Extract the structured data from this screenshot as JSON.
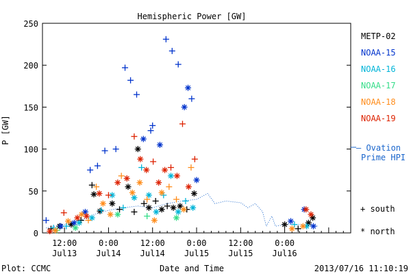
{
  "chart_data": {
    "type": "scatter",
    "title": "Hemispheric Power [GW]",
    "xlabel": "Date and Time",
    "ylabel": "P [GW]",
    "ylim": [
      0,
      250
    ],
    "yticks": [
      0,
      50,
      100,
      150,
      200,
      250
    ],
    "xlim": [
      "2013-07-13 06:00",
      "2013-07-16 18:00"
    ],
    "xticks": [
      {
        "t": "2013-07-13 12:00",
        "line1": "12:00",
        "line2": "Jul13"
      },
      {
        "t": "2013-07-14 00:00",
        "line1": "0:00",
        "line2": "Jul14"
      },
      {
        "t": "2013-07-14 12:00",
        "line1": "12:00",
        "line2": "Jul14"
      },
      {
        "t": "2013-07-15 00:00",
        "line1": "0:00",
        "line2": "Jul15"
      },
      {
        "t": "2013-07-15 12:00",
        "line1": "12:00",
        "line2": "Jul15"
      },
      {
        "t": "2013-07-16 00:00",
        "line1": "0:00",
        "line2": "Jul16"
      }
    ],
    "grid": false,
    "legend_position": "right",
    "series": [
      {
        "name": "METP-02",
        "color": "#000000",
        "points": [
          {
            "t": "2013-07-13 08:20",
            "v": 5,
            "m": "+"
          },
          {
            "t": "2013-07-13 10:40",
            "v": 8,
            "m": "*"
          },
          {
            "t": "2013-07-13 13:50",
            "v": 10,
            "m": "*"
          },
          {
            "t": "2013-07-13 16:30",
            "v": 15,
            "m": "+"
          },
          {
            "t": "2013-07-13 19:30",
            "v": 57,
            "m": "+"
          },
          {
            "t": "2013-07-13 20:00",
            "v": 46,
            "m": "*"
          },
          {
            "t": "2013-07-13 21:40",
            "v": 26,
            "m": "*"
          },
          {
            "t": "2013-07-14 01:00",
            "v": 35,
            "m": "*"
          },
          {
            "t": "2013-07-14 03:00",
            "v": 28,
            "m": "+"
          },
          {
            "t": "2013-07-14 05:20",
            "v": 55,
            "m": "*"
          },
          {
            "t": "2013-07-14 07:00",
            "v": 25,
            "m": "+"
          },
          {
            "t": "2013-07-14 08:00",
            "v": 100,
            "m": "*"
          },
          {
            "t": "2013-07-14 09:40",
            "v": 35,
            "m": "+"
          },
          {
            "t": "2013-07-14 11:00",
            "v": 30,
            "m": "*"
          },
          {
            "t": "2013-07-14 12:50",
            "v": 38,
            "m": "+"
          },
          {
            "t": "2013-07-14 14:30",
            "v": 28,
            "m": "*"
          },
          {
            "t": "2013-07-14 16:00",
            "v": 32,
            "m": "+"
          },
          {
            "t": "2013-07-14 17:40",
            "v": 30,
            "m": "*"
          },
          {
            "t": "2013-07-14 19:30",
            "v": 32,
            "m": "*"
          },
          {
            "t": "2013-07-14 21:20",
            "v": 28,
            "m": "+"
          },
          {
            "t": "2013-07-14 23:20",
            "v": 47,
            "m": "*"
          },
          {
            "t": "2013-07-16 00:00",
            "v": 10,
            "m": "*"
          },
          {
            "t": "2013-07-16 03:40",
            "v": 5,
            "m": "+"
          },
          {
            "t": "2013-07-16 06:30",
            "v": 12,
            "m": "*"
          },
          {
            "t": "2013-07-16 07:40",
            "v": 18,
            "m": "*"
          }
        ]
      },
      {
        "name": "NOAA-15",
        "color": "#0033cc",
        "points": [
          {
            "t": "2013-07-13 07:00",
            "v": 15,
            "m": "+"
          },
          {
            "t": "2013-07-13 11:00",
            "v": 8,
            "m": "*"
          },
          {
            "t": "2013-07-13 14:40",
            "v": 12,
            "m": "*"
          },
          {
            "t": "2013-07-13 17:40",
            "v": 25,
            "m": "*"
          },
          {
            "t": "2013-07-13 19:00",
            "v": 75,
            "m": "+"
          },
          {
            "t": "2013-07-13 21:00",
            "v": 80,
            "m": "+"
          },
          {
            "t": "2013-07-13 23:00",
            "v": 98,
            "m": "+"
          },
          {
            "t": "2013-07-14 02:00",
            "v": 100,
            "m": "+"
          },
          {
            "t": "2013-07-14 04:30",
            "v": 197,
            "m": "+"
          },
          {
            "t": "2013-07-14 06:00",
            "v": 182,
            "m": "+"
          },
          {
            "t": "2013-07-14 07:40",
            "v": 165,
            "m": "+"
          },
          {
            "t": "2013-07-14 09:30",
            "v": 112,
            "m": "*"
          },
          {
            "t": "2013-07-14 11:30",
            "v": 122,
            "m": "+"
          },
          {
            "t": "2013-07-14 12:00",
            "v": 128,
            "m": "+"
          },
          {
            "t": "2013-07-14 14:00",
            "v": 105,
            "m": "*"
          },
          {
            "t": "2013-07-14 15:40",
            "v": 231,
            "m": "+"
          },
          {
            "t": "2013-07-14 17:20",
            "v": 217,
            "m": "+"
          },
          {
            "t": "2013-07-14 19:00",
            "v": 201,
            "m": "+"
          },
          {
            "t": "2013-07-14 20:40",
            "v": 150,
            "m": "*"
          },
          {
            "t": "2013-07-14 21:40",
            "v": 173,
            "m": "*"
          },
          {
            "t": "2013-07-14 22:40",
            "v": 160,
            "m": "+"
          },
          {
            "t": "2013-07-15 00:00",
            "v": 63,
            "m": "*"
          },
          {
            "t": "2013-07-16 01:40",
            "v": 14,
            "m": "*"
          },
          {
            "t": "2013-07-16 05:20",
            "v": 28,
            "m": "*"
          },
          {
            "t": "2013-07-16 07:50",
            "v": 8,
            "m": "*"
          }
        ]
      },
      {
        "name": "NOAA-16",
        "color": "#00b4d8",
        "points": [
          {
            "t": "2013-07-13 09:00",
            "v": 6,
            "m": "+"
          },
          {
            "t": "2013-07-13 12:30",
            "v": 8,
            "m": "+"
          },
          {
            "t": "2013-07-13 16:00",
            "v": 12,
            "m": "*"
          },
          {
            "t": "2013-07-13 19:30",
            "v": 18,
            "m": "*"
          },
          {
            "t": "2013-07-13 22:00",
            "v": 27,
            "m": "+"
          },
          {
            "t": "2013-07-14 01:00",
            "v": 45,
            "m": "*"
          },
          {
            "t": "2013-07-14 04:00",
            "v": 30,
            "m": "+"
          },
          {
            "t": "2013-07-14 07:00",
            "v": 42,
            "m": "*"
          },
          {
            "t": "2013-07-14 09:00",
            "v": 78,
            "m": "+"
          },
          {
            "t": "2013-07-14 11:00",
            "v": 45,
            "m": "*"
          },
          {
            "t": "2013-07-14 13:00",
            "v": 25,
            "m": "*"
          },
          {
            "t": "2013-07-14 15:00",
            "v": 45,
            "m": "+"
          },
          {
            "t": "2013-07-14 17:00",
            "v": 68,
            "m": "*"
          },
          {
            "t": "2013-07-14 19:00",
            "v": 25,
            "m": "*"
          },
          {
            "t": "2013-07-14 21:00",
            "v": 38,
            "m": "+"
          },
          {
            "t": "2013-07-14 23:00",
            "v": 30,
            "m": "*"
          },
          {
            "t": "2013-07-16 02:40",
            "v": 10,
            "m": "+"
          },
          {
            "t": "2013-07-16 06:00",
            "v": 8,
            "m": "*"
          }
        ]
      },
      {
        "name": "NOAA-17",
        "color": "#33dd88",
        "points": [
          {
            "t": "2013-07-13 10:00",
            "v": 3,
            "m": "+"
          },
          {
            "t": "2013-07-13 15:00",
            "v": 6,
            "m": "*"
          },
          {
            "t": "2013-07-14 02:30",
            "v": 22,
            "m": "*"
          },
          {
            "t": "2013-07-14 10:30",
            "v": 20,
            "m": "+"
          },
          {
            "t": "2013-07-14 18:30",
            "v": 18,
            "m": "*"
          }
        ]
      },
      {
        "name": "NOAA-18",
        "color": "#ff8c1a",
        "points": [
          {
            "t": "2013-07-13 09:30",
            "v": 3,
            "m": "*"
          },
          {
            "t": "2013-07-13 13:00",
            "v": 14,
            "m": "*"
          },
          {
            "t": "2013-07-13 16:40",
            "v": 22,
            "m": "*"
          },
          {
            "t": "2013-07-13 18:30",
            "v": 15,
            "m": "+"
          },
          {
            "t": "2013-07-13 20:40",
            "v": 55,
            "m": "+"
          },
          {
            "t": "2013-07-13 22:30",
            "v": 35,
            "m": "*"
          },
          {
            "t": "2013-07-14 00:30",
            "v": 22,
            "m": "*"
          },
          {
            "t": "2013-07-14 03:30",
            "v": 68,
            "m": "+"
          },
          {
            "t": "2013-07-14 06:30",
            "v": 48,
            "m": "*"
          },
          {
            "t": "2013-07-14 08:30",
            "v": 60,
            "m": "*"
          },
          {
            "t": "2013-07-14 10:30",
            "v": 40,
            "m": "+"
          },
          {
            "t": "2013-07-14 12:30",
            "v": 15,
            "m": "*"
          },
          {
            "t": "2013-07-14 14:30",
            "v": 48,
            "m": "*"
          },
          {
            "t": "2013-07-14 16:30",
            "v": 55,
            "m": "+"
          },
          {
            "t": "2013-07-14 18:30",
            "v": 40,
            "m": "+"
          },
          {
            "t": "2013-07-14 20:30",
            "v": 28,
            "m": "*"
          },
          {
            "t": "2013-07-14 22:30",
            "v": 78,
            "m": "+"
          },
          {
            "t": "2013-07-16 02:00",
            "v": 5,
            "m": "*"
          },
          {
            "t": "2013-07-16 05:00",
            "v": 8,
            "m": "*"
          }
        ]
      },
      {
        "name": "NOAA-19",
        "color": "#dd2200",
        "points": [
          {
            "t": "2013-07-13 08:00",
            "v": 2,
            "m": "*"
          },
          {
            "t": "2013-07-13 11:50",
            "v": 24,
            "m": "+"
          },
          {
            "t": "2013-07-13 15:30",
            "v": 18,
            "m": "*"
          },
          {
            "t": "2013-07-13 18:00",
            "v": 20,
            "m": "*"
          },
          {
            "t": "2013-07-13 21:30",
            "v": 47,
            "m": "*"
          },
          {
            "t": "2013-07-14 00:00",
            "v": 45,
            "m": "+"
          },
          {
            "t": "2013-07-14 02:30",
            "v": 60,
            "m": "*"
          },
          {
            "t": "2013-07-14 05:00",
            "v": 65,
            "m": "*"
          },
          {
            "t": "2013-07-14 07:00",
            "v": 115,
            "m": "+"
          },
          {
            "t": "2013-07-14 08:40",
            "v": 88,
            "m": "*"
          },
          {
            "t": "2013-07-14 10:20",
            "v": 75,
            "m": "*"
          },
          {
            "t": "2013-07-14 12:10",
            "v": 85,
            "m": "+"
          },
          {
            "t": "2013-07-14 13:40",
            "v": 60,
            "m": "*"
          },
          {
            "t": "2013-07-14 15:20",
            "v": 75,
            "m": "*"
          },
          {
            "t": "2013-07-14 17:00",
            "v": 78,
            "m": "+"
          },
          {
            "t": "2013-07-14 18:40",
            "v": 68,
            "m": "*"
          },
          {
            "t": "2013-07-14 20:10",
            "v": 130,
            "m": "+"
          },
          {
            "t": "2013-07-14 21:50",
            "v": 55,
            "m": "*"
          },
          {
            "t": "2013-07-14 23:30",
            "v": 88,
            "m": "+"
          },
          {
            "t": "2013-07-16 05:50",
            "v": 28,
            "m": "*"
          },
          {
            "t": "2013-07-16 07:10",
            "v": 22,
            "m": "*"
          }
        ]
      }
    ],
    "ovation": {
      "name": "Ovation Prime HPI",
      "color": "#1a66cc",
      "points": [
        {
          "t": "2013-07-13 07:00",
          "v": 6
        },
        {
          "t": "2013-07-13 12:00",
          "v": 10
        },
        {
          "t": "2013-07-13 17:00",
          "v": 16
        },
        {
          "t": "2013-07-13 20:00",
          "v": 22
        },
        {
          "t": "2013-07-14 00:00",
          "v": 27
        },
        {
          "t": "2013-07-14 04:00",
          "v": 30
        },
        {
          "t": "2013-07-14 08:00",
          "v": 32
        },
        {
          "t": "2013-07-14 12:00",
          "v": 30
        },
        {
          "t": "2013-07-14 16:00",
          "v": 35
        },
        {
          "t": "2013-07-14 20:00",
          "v": 38
        },
        {
          "t": "2013-07-15 00:00",
          "v": 40
        },
        {
          "t": "2013-07-15 03:00",
          "v": 47
        },
        {
          "t": "2013-07-15 05:00",
          "v": 35
        },
        {
          "t": "2013-07-15 08:00",
          "v": 38
        },
        {
          "t": "2013-07-15 12:00",
          "v": 36
        },
        {
          "t": "2013-07-15 14:00",
          "v": 30
        },
        {
          "t": "2013-07-15 16:00",
          "v": 35
        },
        {
          "t": "2013-07-15 18:00",
          "v": 25
        },
        {
          "t": "2013-07-15 19:00",
          "v": 8
        },
        {
          "t": "2013-07-15 20:30",
          "v": 20
        },
        {
          "t": "2013-07-15 21:30",
          "v": 8
        },
        {
          "t": "2013-07-16 00:00",
          "v": 10
        },
        {
          "t": "2013-07-16 06:00",
          "v": 10
        },
        {
          "t": "2013-07-16 09:00",
          "v": 8
        }
      ]
    }
  },
  "legend": {
    "entries": [
      {
        "label": "METP-02",
        "color": "#000000"
      },
      {
        "label": "NOAA-15",
        "color": "#0033cc"
      },
      {
        "label": "NOAA-16",
        "color": "#00b4d8"
      },
      {
        "label": "NOAA-17",
        "color": "#33dd88"
      },
      {
        "label": "NOAA-18",
        "color": "#ff8c1a"
      },
      {
        "label": "NOAA-19",
        "color": "#dd2200"
      }
    ],
    "ovation_line1": "— Ovation",
    "ovation_line2": "Prime HPI",
    "south_label": "+ south",
    "north_label": "* north"
  },
  "footer": {
    "left": "Plot: CCMC",
    "right": "2013/07/16 11:10:19"
  }
}
